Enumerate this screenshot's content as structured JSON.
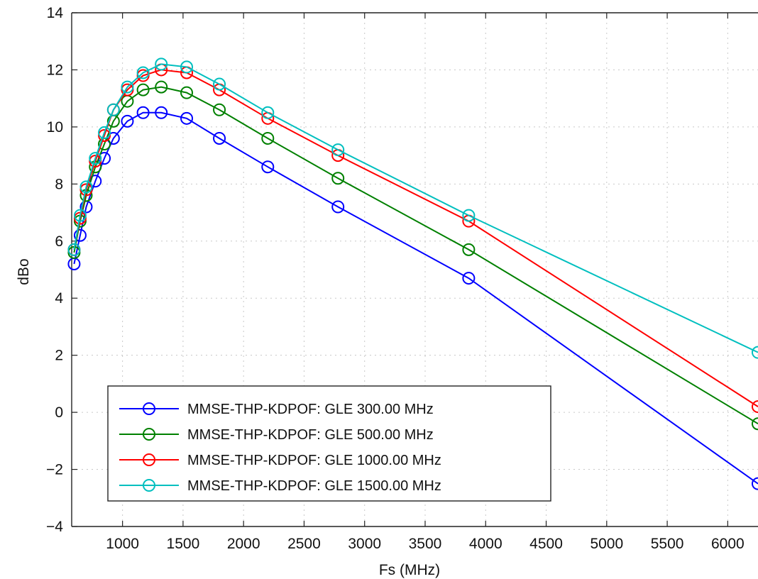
{
  "chart_data": {
    "type": "line",
    "xlabel": "Fs (MHz)",
    "ylabel": "dBo",
    "xlim": [
      580,
      6250
    ],
    "ylim": [
      -4,
      14
    ],
    "x_ticks": [
      1000,
      1500,
      2000,
      2500,
      3000,
      3500,
      4000,
      4500,
      5000,
      5500,
      6000
    ],
    "y_ticks": [
      -4,
      -2,
      0,
      2,
      4,
      6,
      8,
      10,
      12,
      14
    ],
    "grid": true,
    "legend_position": "lower-left",
    "series": [
      {
        "name": "MMSE-THP-KDPOF: GLE 300.00 MHz",
        "color": "#0000ff",
        "x": [
          600,
          650,
          700,
          775,
          850,
          925,
          1040,
          1170,
          1320,
          1530,
          1800,
          2200,
          2780,
          3860,
          6250
        ],
        "y": [
          5.2,
          6.2,
          7.2,
          8.1,
          8.9,
          9.6,
          10.2,
          10.5,
          10.5,
          10.3,
          9.6,
          8.6,
          7.2,
          4.7,
          -2.5
        ]
      },
      {
        "name": "MMSE-THP-KDPOF: GLE 500.00 MHz",
        "color": "#008000",
        "x": [
          600,
          650,
          700,
          775,
          850,
          925,
          1040,
          1170,
          1320,
          1530,
          1800,
          2200,
          2780,
          3860,
          6250
        ],
        "y": [
          5.6,
          6.7,
          7.6,
          8.6,
          9.4,
          10.2,
          10.9,
          11.3,
          11.4,
          11.2,
          10.6,
          9.6,
          8.2,
          5.7,
          -0.4
        ]
      },
      {
        "name": "MMSE-THP-KDPOF: GLE 1000.00 MHz",
        "color": "#ff0000",
        "x": [
          600,
          650,
          700,
          775,
          850,
          925,
          1040,
          1170,
          1320,
          1530,
          1800,
          2200,
          2780,
          3860,
          6250
        ],
        "y": [
          5.7,
          6.8,
          7.8,
          8.8,
          9.7,
          10.6,
          11.3,
          11.8,
          12.0,
          11.9,
          11.3,
          10.3,
          9.0,
          6.7,
          0.2
        ]
      },
      {
        "name": "MMSE-THP-KDPOF: GLE 1500.00 MHz",
        "color": "#00bfbf",
        "x": [
          600,
          650,
          700,
          775,
          850,
          925,
          1040,
          1170,
          1320,
          1530,
          1800,
          2200,
          2780,
          3860,
          6250
        ],
        "y": [
          5.7,
          6.9,
          7.9,
          8.9,
          9.8,
          10.6,
          11.4,
          11.9,
          12.2,
          12.1,
          11.5,
          10.5,
          9.2,
          6.9,
          2.1
        ]
      }
    ]
  }
}
